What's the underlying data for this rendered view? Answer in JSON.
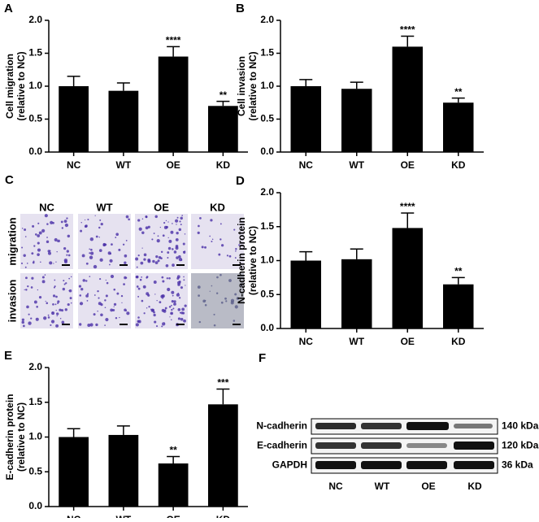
{
  "chart_data": [
    {
      "type": "bar",
      "panel": "A",
      "ylabel": [
        "Cell migration",
        "(relative to NC)"
      ],
      "categories": [
        "NC",
        "WT",
        "OE",
        "KD"
      ],
      "values": [
        1.0,
        0.93,
        1.45,
        0.7
      ],
      "errors": [
        0.15,
        0.12,
        0.15,
        0.07
      ],
      "value_annotations": [
        null,
        null,
        "****",
        "**"
      ],
      "color": "#000000",
      "ylim": [
        0,
        2
      ],
      "yticks": [
        {
          "value": 0,
          "label": "0.0"
        },
        {
          "value": 0.5,
          "label": "0.5"
        },
        {
          "value": 1,
          "label": "1.0"
        },
        {
          "value": 1.5,
          "label": "1.5"
        },
        {
          "value": 2,
          "label": "2.0"
        }
      ]
    },
    {
      "type": "bar",
      "panel": "B",
      "ylabel": [
        "Cell invasion",
        "(relative to NC)"
      ],
      "categories": [
        "NC",
        "WT",
        "OE",
        "KD"
      ],
      "values": [
        1.0,
        0.96,
        1.6,
        0.75
      ],
      "errors": [
        0.1,
        0.1,
        0.16,
        0.07
      ],
      "value_annotations": [
        null,
        null,
        "****",
        "**"
      ],
      "color": "#000000",
      "ylim": [
        0,
        2
      ],
      "yticks": [
        {
          "value": 0,
          "label": "0.0"
        },
        {
          "value": 0.5,
          "label": "0.5"
        },
        {
          "value": 1,
          "label": "1.0"
        },
        {
          "value": 1.5,
          "label": "1.5"
        },
        {
          "value": 2,
          "label": "2.0"
        }
      ]
    },
    {
      "type": "bar",
      "panel": "D",
      "ylabel": [
        "N-cadherin protein",
        "(relative to NC)"
      ],
      "categories": [
        "NC",
        "WT",
        "OE",
        "KD"
      ],
      "values": [
        1.0,
        1.02,
        1.48,
        0.65
      ],
      "errors": [
        0.13,
        0.15,
        0.22,
        0.1
      ],
      "value_annotations": [
        null,
        null,
        "****",
        "**"
      ],
      "color": "#000000",
      "ylim": [
        0,
        2
      ],
      "yticks": [
        {
          "value": 0,
          "label": "0.0"
        },
        {
          "value": 0.5,
          "label": "0.5"
        },
        {
          "value": 1,
          "label": "1.0"
        },
        {
          "value": 1.5,
          "label": "1.5"
        },
        {
          "value": 2,
          "label": "2.0"
        }
      ]
    },
    {
      "type": "bar",
      "panel": "E",
      "ylabel": [
        "E-cadherin protein",
        "(relative to NC)"
      ],
      "categories": [
        "NC",
        "WT",
        "OE",
        "KD"
      ],
      "values": [
        1.0,
        1.03,
        0.62,
        1.47
      ],
      "errors": [
        0.12,
        0.13,
        0.1,
        0.22
      ],
      "value_annotations": [
        null,
        null,
        "**",
        "***"
      ],
      "color": "#000000",
      "ylim": [
        0,
        2
      ],
      "yticks": [
        {
          "value": 0,
          "label": "0.0"
        },
        {
          "value": 0.5,
          "label": "0.5"
        },
        {
          "value": 1,
          "label": "1.0"
        },
        {
          "value": 1.5,
          "label": "1.5"
        },
        {
          "value": 2,
          "label": "2.0"
        }
      ]
    }
  ],
  "micrographs": {
    "panel": "C",
    "columns": [
      "NC",
      "WT",
      "OE",
      "KD"
    ],
    "rows": [
      "migration",
      "invasion"
    ]
  },
  "western_blot": {
    "panel": "F",
    "proteins": [
      "N-cadherin",
      "E-cadherin",
      "GAPDH"
    ],
    "sizes": [
      "140 kDa",
      "120 kDa",
      "36 kDa"
    ],
    "lanes": [
      "NC",
      "WT",
      "OE",
      "KD"
    ]
  }
}
